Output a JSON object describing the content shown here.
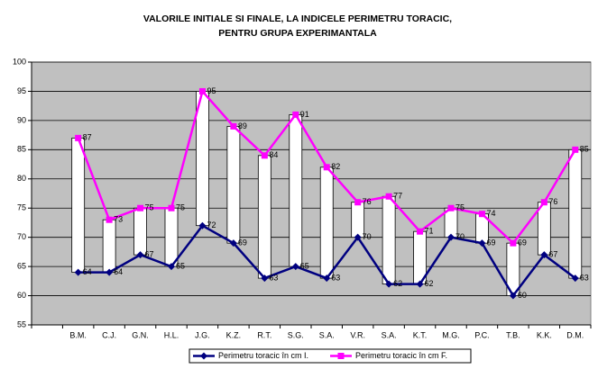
{
  "chart_data": {
    "type": "line",
    "title": "VALORILE INITIALE SI FINALE, LA INDICELE PERIMETRU TORACIC, PENTRU GRUPA EXPERIMANTALA",
    "categories": [
      null,
      "B.M.",
      "C.J.",
      "G.N.",
      "H.L.",
      "J.G.",
      "K.Z.",
      "R.T.",
      "S.G.",
      "S.A.",
      "V.R.",
      "S.A.",
      "K.T.",
      "M.G.",
      "P.C.",
      "T.B.",
      "K.K.",
      "D.M."
    ],
    "series": [
      {
        "name": "Perimetru toracic în cm I.",
        "color": "#000080",
        "marker": "diamond",
        "values": [
          null,
          64,
          64,
          67,
          65,
          72,
          69,
          63,
          65,
          63,
          70,
          62,
          62,
          70,
          69,
          60,
          67,
          63
        ]
      },
      {
        "name": "Perimetru toracic în cm F.",
        "color": "#ff00ff",
        "marker": "square",
        "values": [
          null,
          87,
          73,
          75,
          75,
          95,
          89,
          84,
          91,
          82,
          76,
          77,
          71,
          75,
          74,
          69,
          76,
          85
        ]
      }
    ],
    "up_down_bars": true,
    "ylim": [
      55,
      100
    ],
    "yticks": [
      55,
      60,
      65,
      70,
      75,
      80,
      85,
      90,
      95,
      100
    ],
    "grid": true,
    "legend": "bottom",
    "plot_background": "#c0c0c0"
  }
}
